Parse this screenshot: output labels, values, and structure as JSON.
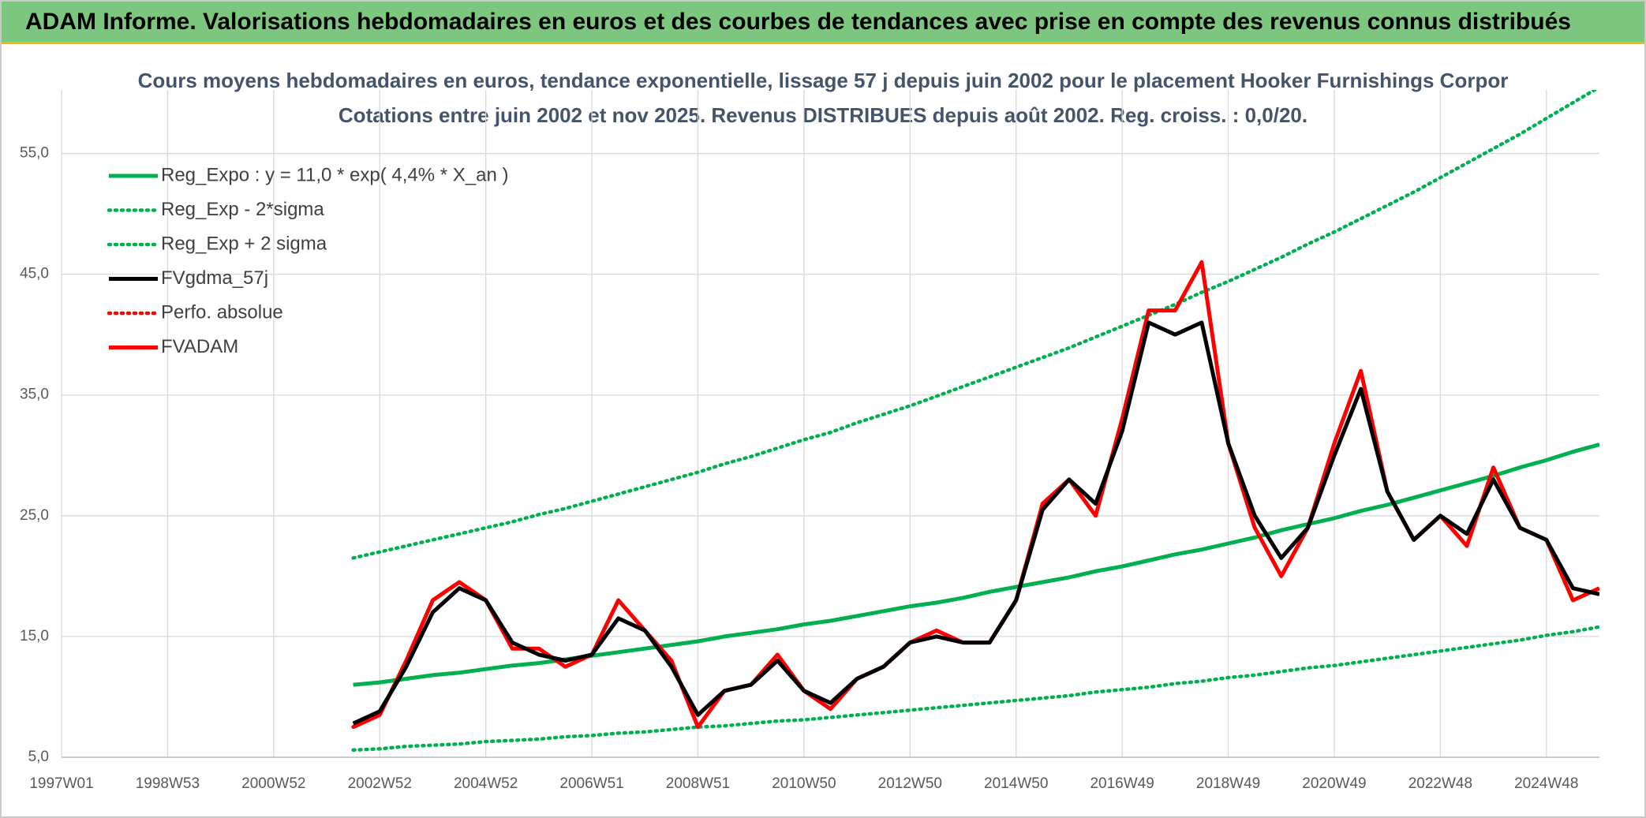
{
  "header": {
    "title": "ADAM Informe. Valorisations hebdomadaires en euros et des courbes de tendances avec prise en compte des revenus connus distribués"
  },
  "chart_data": {
    "type": "line",
    "title": "Cours moyens hebdomadaires en euros, tendance exponentielle, lissage 57 j depuis juin 2002 pour le placement Hooker Furnishings Corpor",
    "subtitle": "Cotations entre juin 2002 et nov 2025. Revenus DISTRIBUES depuis août 2002. Reg. croiss. : 0,0/20.",
    "categories": [
      "1997W01",
      null,
      null,
      null,
      "1998W53",
      null,
      null,
      null,
      "2000W52",
      null,
      null,
      null,
      "2002W52",
      null,
      null,
      null,
      "2004W52",
      null,
      null,
      null,
      "2006W51",
      null,
      null,
      null,
      "2008W51",
      null,
      null,
      null,
      "2010W50",
      null,
      null,
      null,
      "2012W50",
      null,
      null,
      null,
      "2014W50",
      null,
      null,
      null,
      "2016W49",
      null,
      null,
      null,
      "2018W49",
      null,
      null,
      null,
      "2020W49",
      null,
      null,
      null,
      "2022W48",
      null,
      null,
      null,
      "2024W48",
      null,
      null
    ],
    "ylim": [
      5,
      60
    ],
    "yticks": [
      {
        "value": 5,
        "label": "5,0"
      },
      {
        "value": 15,
        "label": "15,0"
      },
      {
        "value": 25,
        "label": "25,0"
      },
      {
        "value": 35,
        "label": "35,0"
      },
      {
        "value": 45,
        "label": "45,0"
      },
      {
        "value": 55,
        "label": "55,0"
      }
    ],
    "grid": true,
    "legend": "top-left",
    "series": [
      {
        "name": "Reg_Expo : y = 11,0 * exp( 4,4% *  X_an )",
        "color": "#00b050",
        "style": "solid",
        "values": [
          null,
          null,
          null,
          null,
          null,
          null,
          null,
          null,
          null,
          null,
          null,
          11.0,
          11.2,
          11.5,
          11.8,
          12.0,
          12.3,
          12.6,
          12.8,
          13.1,
          13.4,
          13.7,
          14.0,
          14.3,
          14.6,
          15.0,
          15.3,
          15.6,
          16.0,
          16.3,
          16.7,
          17.1,
          17.5,
          17.8,
          18.2,
          18.7,
          19.1,
          19.5,
          19.9,
          20.4,
          20.8,
          21.3,
          21.8,
          22.2,
          22.7,
          23.2,
          23.8,
          24.3,
          24.8,
          25.4,
          25.9,
          26.5,
          27.1,
          27.7,
          28.3,
          29.0,
          29.6,
          30.3,
          30.9
        ]
      },
      {
        "name": "Reg_Exp - 2*sigma",
        "color": "#00b050",
        "style": "dotted",
        "values": [
          null,
          null,
          null,
          null,
          null,
          null,
          null,
          null,
          null,
          null,
          null,
          5.6,
          5.7,
          5.9,
          6.0,
          6.1,
          6.3,
          6.4,
          6.5,
          6.7,
          6.8,
          7.0,
          7.1,
          7.3,
          7.5,
          7.6,
          7.8,
          8.0,
          8.1,
          8.3,
          8.5,
          8.7,
          8.9,
          9.1,
          9.3,
          9.5,
          9.7,
          9.9,
          10.1,
          10.4,
          10.6,
          10.8,
          11.1,
          11.3,
          11.6,
          11.8,
          12.1,
          12.4,
          12.6,
          12.9,
          13.2,
          13.5,
          13.8,
          14.1,
          14.4,
          14.7,
          15.1,
          15.4,
          15.8
        ]
      },
      {
        "name": "Reg_Exp + 2 sigma",
        "color": "#00b050",
        "style": "dotted",
        "values": [
          null,
          null,
          null,
          null,
          null,
          null,
          null,
          null,
          null,
          null,
          null,
          21.5,
          22.0,
          22.5,
          23.0,
          23.5,
          24.0,
          24.5,
          25.1,
          25.6,
          26.2,
          26.8,
          27.4,
          28.0,
          28.6,
          29.3,
          29.9,
          30.6,
          31.3,
          31.9,
          32.7,
          33.4,
          34.1,
          34.9,
          35.7,
          36.5,
          37.3,
          38.1,
          38.9,
          39.8,
          40.7,
          41.6,
          42.5,
          43.5,
          44.4,
          45.4,
          46.4,
          47.5,
          48.5,
          49.6,
          50.7,
          51.8,
          53.0,
          54.2,
          55.4,
          56.6,
          57.9,
          59.2,
          60.5
        ]
      },
      {
        "name": "FVgdma_57j",
        "color": "#000000",
        "style": "solid",
        "values": [
          null,
          null,
          null,
          null,
          null,
          null,
          null,
          null,
          null,
          null,
          null,
          7.8,
          8.8,
          12.5,
          17,
          19,
          18,
          14.5,
          13.5,
          13,
          13.5,
          16.5,
          15.5,
          12.5,
          8.5,
          10.5,
          11,
          13,
          10.5,
          9.5,
          11.5,
          12.5,
          14.5,
          15,
          14.5,
          14.5,
          18,
          25.5,
          28,
          26,
          32,
          41,
          40,
          41,
          31,
          25,
          21.5,
          24,
          30,
          35.5,
          27,
          23,
          25,
          23.5,
          28,
          24,
          23,
          19,
          18.5
        ]
      },
      {
        "name": "Perfo. absolue",
        "color": "#ff0000",
        "style": "dotted",
        "values": [
          null,
          null,
          null,
          null,
          null,
          null,
          null,
          null,
          null,
          null,
          null,
          7.5,
          8.5,
          13,
          18,
          19.5,
          18,
          14,
          14,
          12.5,
          13.5,
          18,
          15.5,
          13,
          7.5,
          10.5,
          11,
          13.5,
          10.5,
          9,
          11.5,
          12.5,
          14.5,
          15.5,
          14.5,
          14.5,
          18,
          26,
          28,
          25,
          33,
          42,
          42,
          46,
          31,
          24,
          20,
          24,
          31,
          37,
          27,
          23,
          25,
          22.5,
          29,
          24,
          23,
          18,
          19
        ]
      },
      {
        "name": "FVADAM",
        "color": "#ff0000",
        "style": "solid",
        "values": [
          null,
          null,
          null,
          null,
          null,
          null,
          null,
          null,
          null,
          null,
          null,
          7.5,
          8.5,
          13,
          18,
          19.5,
          18,
          14,
          14,
          12.5,
          13.5,
          18,
          15.5,
          13,
          7.5,
          10.5,
          11,
          13.5,
          10.5,
          9,
          11.5,
          12.5,
          14.5,
          15.5,
          14.5,
          14.5,
          18,
          26,
          28,
          25,
          33,
          42,
          42,
          46,
          31,
          24,
          20,
          24,
          31,
          37,
          27,
          23,
          25,
          22.5,
          29,
          24,
          23,
          18,
          19
        ]
      }
    ]
  }
}
